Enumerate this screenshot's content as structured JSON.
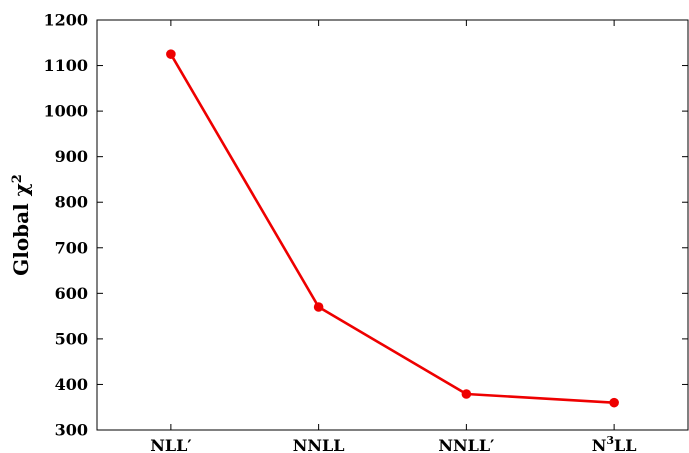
{
  "chart_data": {
    "type": "line",
    "title": "",
    "xlabel": "",
    "ylabel": "Global χ",
    "ylabel_superscript": "2",
    "categories": [
      {
        "main": "NLL′",
        "sup": ""
      },
      {
        "main": "NNLL",
        "sup": ""
      },
      {
        "main": "NNLL′",
        "sup": ""
      },
      {
        "main": "N",
        "sup": "3",
        "suffix": "LL"
      }
    ],
    "series": [
      {
        "values": [
          1125,
          570,
          379,
          360
        ],
        "color": "#ee0000"
      }
    ],
    "ylim": [
      300,
      1200
    ],
    "yticks": [
      300,
      400,
      500,
      600,
      700,
      800,
      900,
      1000,
      1100,
      1200
    ],
    "grid": false,
    "legend": "none"
  }
}
